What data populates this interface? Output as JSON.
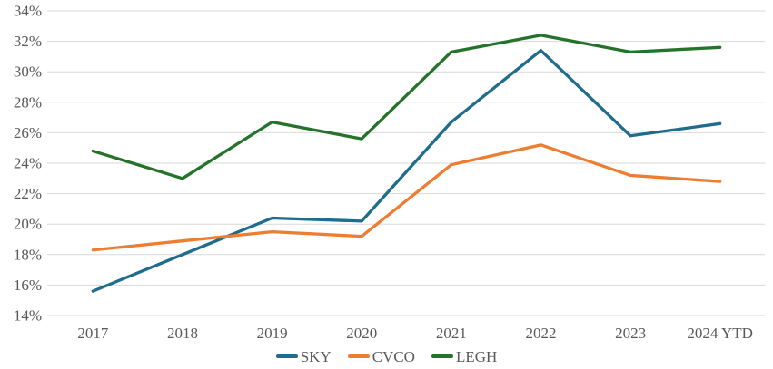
{
  "colors": {
    "background": "#FFFFFF",
    "gridline": "#D9D9D9",
    "axis_text": "#595959",
    "sky_blue": "#1F6C8C",
    "cvco_orange": "#ED7D31",
    "legh_green": "#25722B"
  },
  "chart_data": {
    "type": "line",
    "title": "",
    "xlabel": "",
    "ylabel": "",
    "categories": [
      "2017",
      "2018",
      "2019",
      "2020",
      "2021",
      "2022",
      "2023",
      "2024 YTD"
    ],
    "series": [
      {
        "name": "SKY",
        "color": "#1F6C8C",
        "values": [
          15.6,
          18.0,
          20.4,
          20.2,
          26.7,
          31.4,
          25.8,
          26.6
        ]
      },
      {
        "name": "CVCO",
        "color": "#ED7D31",
        "values": [
          18.3,
          18.9,
          19.5,
          19.2,
          23.9,
          25.2,
          23.2,
          22.8
        ]
      },
      {
        "name": "LEGH",
        "color": "#25722B",
        "values": [
          24.8,
          23.0,
          26.7,
          25.6,
          31.3,
          32.4,
          31.3,
          31.6
        ]
      }
    ],
    "ylim": [
      14,
      34
    ],
    "ytick_step": 2,
    "ytick_suffix": "%",
    "grid": "horizontal-only",
    "legend_position": "bottom-center"
  }
}
